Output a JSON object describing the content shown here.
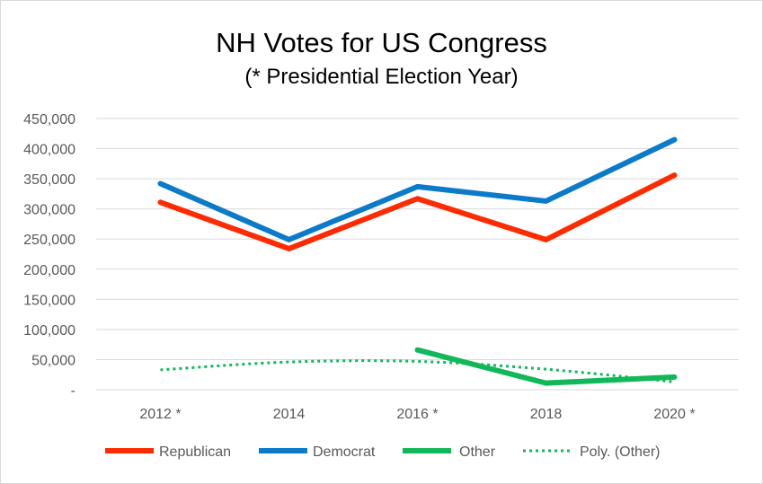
{
  "chart_data": {
    "type": "line",
    "title": "NH Votes for US Congress",
    "subtitle": "(* Presidential Election Year)",
    "categories": [
      "2012 *",
      "2014",
      "2016 *",
      "2018",
      "2020 *"
    ],
    "ylim": [
      0,
      450000
    ],
    "yticks": [
      0,
      50000,
      100000,
      150000,
      200000,
      250000,
      300000,
      350000,
      400000,
      450000
    ],
    "ytick_labels": [
      "-",
      "50,000",
      "100,000",
      "150,000",
      "200,000",
      "250,000",
      "300,000",
      "350,000",
      "400,000",
      "450,000"
    ],
    "grid": true,
    "legend_position": "bottom",
    "series": [
      {
        "name": "Republican",
        "color": "#ff2a00",
        "style": "solid",
        "values": [
          311000,
          234000,
          317000,
          249000,
          356000
        ]
      },
      {
        "name": "Democrat",
        "color": "#0b7bc9",
        "style": "solid",
        "values": [
          342000,
          249000,
          337000,
          313000,
          415000
        ]
      },
      {
        "name": "Other",
        "color": "#11b85a",
        "style": "solid",
        "values": [
          null,
          null,
          66000,
          11000,
          21000
        ]
      },
      {
        "name": "Poly. (Other)",
        "color": "#11b85a",
        "style": "dotted",
        "values": [
          33000,
          46000,
          47000,
          34000,
          13000
        ]
      }
    ]
  }
}
